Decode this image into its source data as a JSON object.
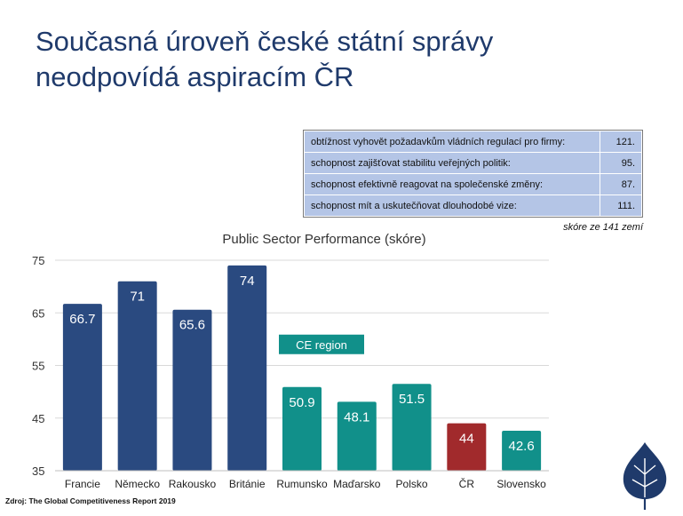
{
  "title": {
    "line1": "Současná úroveň české státní správy",
    "line2": "neodpovídá aspiracím ČR"
  },
  "table": {
    "rows": [
      {
        "label": "obtížnost vyhovět požadavkům vládních regulací pro firmy:",
        "value": "121."
      },
      {
        "label": "schopnost zajišťovat stabilitu veřejných politik:",
        "value": "95."
      },
      {
        "label": "schopnost efektivně reagovat na společenské změny:",
        "value": "87."
      },
      {
        "label": "schopnost mít a uskutečňovat  dlouhodobé vize:",
        "value": "111."
      }
    ],
    "note": "skóre ze 141 zemí"
  },
  "source": "Zdroj: The Global Competitiveness Report 2019",
  "colors": {
    "west": "#2a4a80",
    "ce": "#11908a",
    "cr": "#a12a2c",
    "logo": "#1f3a6b"
  },
  "chart_data": {
    "type": "bar",
    "title": "Public Sector Performance (skóre)",
    "categories": [
      "Francie",
      "Německo",
      "Rakousko",
      "Británie",
      "Rumunsko",
      "Maďarsko",
      "Polsko",
      "ČR",
      "Slovensko"
    ],
    "values": [
      66.7,
      71,
      65.6,
      74,
      50.9,
      48.1,
      51.5,
      44,
      42.6
    ],
    "value_labels": [
      "66.7",
      "71",
      "65.6",
      "74",
      "50.9",
      "48.1",
      "51.5",
      "44",
      "42.6"
    ],
    "groups": [
      "west",
      "west",
      "west",
      "west",
      "ce",
      "ce",
      "ce",
      "cr",
      "ce"
    ],
    "ylim": [
      35,
      75
    ],
    "yticks": [
      35,
      45,
      55,
      65,
      75
    ],
    "grid": true,
    "annotation": "CE region",
    "xlabel": "",
    "ylabel": ""
  },
  "icons": {
    "logo": "linden-leaf-icon"
  }
}
